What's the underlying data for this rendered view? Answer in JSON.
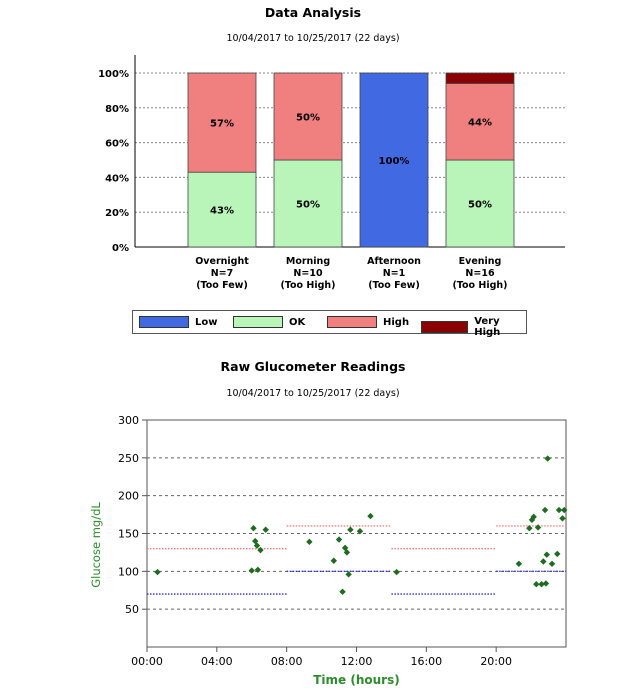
{
  "charts": [
    {
      "title": "Data Analysis",
      "subtitle": "10/04/2017 to 10/25/2017 (22 days)"
    },
    {
      "title": "Raw Glucometer Readings",
      "subtitle": "10/04/2017 to 10/25/2017 (22 days)"
    }
  ],
  "legend": [
    {
      "label": "Low",
      "color": "#4169e1"
    },
    {
      "label": "OK",
      "color": "#b9f5b9"
    },
    {
      "label": "High",
      "color": "#f08080"
    },
    {
      "label": "Very High",
      "color": "#8b0000"
    }
  ],
  "chart_data": [
    {
      "type": "bar",
      "stacked": true,
      "title": "Data Analysis",
      "subtitle": "10/04/2017 to 10/25/2017 (22 days)",
      "categories": [
        [
          "Overnight",
          "N=7",
          "(Too Few)"
        ],
        [
          "Morning",
          "N=10",
          "(Too High)"
        ],
        [
          "Afternoon",
          "N=1",
          "(Too Few)"
        ],
        [
          "Evening",
          "N=16",
          "(Too High)"
        ]
      ],
      "series": [
        {
          "name": "Low",
          "values": [
            0,
            0,
            100,
            0
          ],
          "labels": [
            "",
            "",
            "100%",
            ""
          ]
        },
        {
          "name": "OK",
          "values": [
            43,
            50,
            0,
            50
          ],
          "labels": [
            "43%",
            "50%",
            "",
            "50%"
          ]
        },
        {
          "name": "High",
          "values": [
            57,
            50,
            0,
            44
          ],
          "labels": [
            "57%",
            "50%",
            "",
            "44%"
          ]
        },
        {
          "name": "Very High",
          "values": [
            0,
            0,
            0,
            6
          ],
          "labels": [
            "",
            "",
            "",
            "6%"
          ]
        }
      ],
      "yticks": [
        "0%",
        "20%",
        "40%",
        "60%",
        "80%",
        "100%"
      ],
      "ylim": [
        0,
        100
      ],
      "grid": true,
      "legend_position": "bottom"
    },
    {
      "type": "scatter",
      "title": "Raw Glucometer Readings",
      "subtitle": "10/04/2017 to 10/25/2017 (22 days)",
      "xlabel": "Time (hours)",
      "ylabel": "Glucose mg/dL",
      "xlim": [
        0,
        24
      ],
      "ylim": [
        0,
        300
      ],
      "xticks": [
        "00:00",
        "04:00",
        "08:00",
        "12:00",
        "16:00",
        "20:00"
      ],
      "yticks": [
        50,
        100,
        150,
        200,
        250,
        300
      ],
      "grid": true,
      "target_ranges": [
        {
          "x": [
            0,
            8
          ],
          "low": 70,
          "high": 130
        },
        {
          "x": [
            8,
            14
          ],
          "low": 100,
          "high": 160
        },
        {
          "x": [
            14,
            20
          ],
          "low": 70,
          "high": 130
        },
        {
          "x": [
            20,
            24
          ],
          "low": 100,
          "high": 160
        }
      ],
      "points": [
        [
          0.6,
          99
        ],
        [
          6.0,
          101
        ],
        [
          6.1,
          157
        ],
        [
          6.2,
          140
        ],
        [
          6.3,
          134
        ],
        [
          6.35,
          102
        ],
        [
          6.5,
          128
        ],
        [
          6.8,
          155
        ],
        [
          9.3,
          139
        ],
        [
          10.7,
          114
        ],
        [
          11.0,
          142
        ],
        [
          11.2,
          73
        ],
        [
          11.35,
          131
        ],
        [
          11.45,
          125
        ],
        [
          11.55,
          96
        ],
        [
          11.65,
          155
        ],
        [
          12.2,
          153
        ],
        [
          12.8,
          173
        ],
        [
          14.3,
          99
        ],
        [
          21.3,
          110
        ],
        [
          21.9,
          157
        ],
        [
          22.05,
          168
        ],
        [
          22.15,
          172
        ],
        [
          22.3,
          83
        ],
        [
          22.4,
          158
        ],
        [
          22.6,
          83
        ],
        [
          22.7,
          113
        ],
        [
          22.8,
          181
        ],
        [
          22.85,
          84
        ],
        [
          22.9,
          122
        ],
        [
          22.95,
          249
        ],
        [
          23.2,
          110
        ],
        [
          23.5,
          123
        ],
        [
          23.6,
          181
        ],
        [
          23.8,
          170
        ],
        [
          23.9,
          181
        ]
      ]
    }
  ]
}
